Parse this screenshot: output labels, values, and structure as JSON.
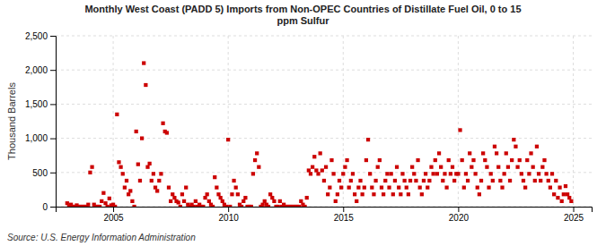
{
  "chart_data": {
    "type": "scatter",
    "title": "Monthly West Coast (PADD 5) Imports from Non-OPEC Countries of Distillate Fuel Oil, 0 to 15\nppm Sulfur",
    "y_label": "Thousand Barrels",
    "annotations": [
      "Source: U.S. Energy Information Administration"
    ],
    "color": "#cc0000",
    "marker": "square",
    "grid": true,
    "xlim": [
      2002.5,
      2025.8
    ],
    "xticks": [
      2005,
      2010,
      2015,
      2020,
      2025
    ],
    "ylim": [
      0,
      2500
    ],
    "yticks": [
      0,
      500,
      {
        "value": 1000,
        "label": "1,000"
      },
      {
        "value": 1500,
        "label": "1,500"
      },
      {
        "value": 2000,
        "label": "2,000"
      },
      {
        "value": 2500,
        "label": "2,500"
      }
    ],
    "x": [
      2003.0,
      2003.083,
      2003.167,
      2003.25,
      2003.333,
      2003.417,
      2003.5,
      2003.583,
      2003.667,
      2003.75,
      2003.833,
      2003.917,
      2004.0,
      2004.083,
      2004.167,
      2004.25,
      2004.333,
      2004.417,
      2004.5,
      2004.583,
      2004.667,
      2004.75,
      2004.833,
      2004.917,
      2005.0,
      2005.083,
      2005.167,
      2005.25,
      2005.333,
      2005.417,
      2005.5,
      2005.583,
      2005.667,
      2005.75,
      2005.833,
      2005.917,
      2006.0,
      2006.083,
      2006.167,
      2006.25,
      2006.333,
      2006.417,
      2006.5,
      2006.583,
      2006.667,
      2006.75,
      2006.833,
      2006.917,
      2007.0,
      2007.083,
      2007.167,
      2007.25,
      2007.333,
      2007.417,
      2007.5,
      2007.583,
      2007.667,
      2007.75,
      2007.833,
      2007.917,
      2008.0,
      2008.083,
      2008.167,
      2008.25,
      2008.333,
      2008.417,
      2008.5,
      2008.583,
      2008.667,
      2008.75,
      2008.833,
      2008.917,
      2009.0,
      2009.083,
      2009.167,
      2009.25,
      2009.333,
      2009.417,
      2009.5,
      2009.583,
      2009.667,
      2009.75,
      2009.833,
      2009.917,
      2010.0,
      2010.083,
      2010.167,
      2010.25,
      2010.333,
      2010.417,
      2010.5,
      2010.583,
      2010.667,
      2010.75,
      2010.833,
      2010.917,
      2011.0,
      2011.083,
      2011.167,
      2011.25,
      2011.333,
      2011.417,
      2011.5,
      2011.583,
      2011.667,
      2011.75,
      2011.833,
      2011.917,
      2012.0,
      2012.083,
      2012.167,
      2012.25,
      2012.333,
      2012.417,
      2012.5,
      2012.583,
      2012.667,
      2012.75,
      2012.833,
      2012.917,
      2013.0,
      2013.083,
      2013.167,
      2013.25,
      2013.333,
      2013.417,
      2013.5,
      2013.583,
      2013.667,
      2013.75,
      2013.833,
      2013.917,
      2014.0,
      2014.083,
      2014.167,
      2014.25,
      2014.333,
      2014.417,
      2014.5,
      2014.583,
      2014.667,
      2014.75,
      2014.833,
      2014.917,
      2015.0,
      2015.083,
      2015.167,
      2015.25,
      2015.333,
      2015.417,
      2015.5,
      2015.583,
      2015.667,
      2015.75,
      2015.833,
      2015.917,
      2016.0,
      2016.083,
      2016.167,
      2016.25,
      2016.333,
      2016.417,
      2016.5,
      2016.583,
      2016.667,
      2016.75,
      2016.833,
      2016.917,
      2017.0,
      2017.083,
      2017.167,
      2017.25,
      2017.333,
      2017.417,
      2017.5,
      2017.583,
      2017.667,
      2017.75,
      2017.833,
      2017.917,
      2018.0,
      2018.083,
      2018.167,
      2018.25,
      2018.333,
      2018.417,
      2018.5,
      2018.583,
      2018.667,
      2018.75,
      2018.833,
      2018.917,
      2019.0,
      2019.083,
      2019.167,
      2019.25,
      2019.333,
      2019.417,
      2019.5,
      2019.583,
      2019.667,
      2019.75,
      2019.833,
      2019.917,
      2020.0,
      2020.083,
      2020.167,
      2020.25,
      2020.333,
      2020.417,
      2020.5,
      2020.583,
      2020.667,
      2020.75,
      2020.833,
      2020.917,
      2021.0,
      2021.083,
      2021.167,
      2021.25,
      2021.333,
      2021.417,
      2021.5,
      2021.583,
      2021.667,
      2021.75,
      2021.833,
      2021.917,
      2022.0,
      2022.083,
      2022.167,
      2022.25,
      2022.333,
      2022.417,
      2022.5,
      2022.583,
      2022.667,
      2022.75,
      2022.833,
      2022.917,
      2023.0,
      2023.083,
      2023.167,
      2023.25,
      2023.333,
      2023.417,
      2023.5,
      2023.583,
      2023.667,
      2023.75,
      2023.833,
      2023.917,
      2024.0,
      2024.083,
      2024.167,
      2024.25,
      2024.333,
      2024.417,
      2024.5,
      2024.583,
      2024.667,
      2024.75,
      2024.833,
      2024.917
    ],
    "values": [
      50,
      0,
      30,
      0,
      0,
      20,
      0,
      0,
      0,
      0,
      0,
      30,
      500,
      580,
      30,
      0,
      0,
      0,
      80,
      200,
      50,
      0,
      120,
      20,
      30,
      0,
      1350,
      650,
      580,
      480,
      280,
      380,
      180,
      230,
      80,
      0,
      1100,
      620,
      380,
      1000,
      2100,
      1780,
      580,
      630,
      380,
      480,
      280,
      230,
      380,
      480,
      1220,
      1100,
      1080,
      280,
      80,
      180,
      130,
      80,
      60,
      0,
      180,
      80,
      280,
      30,
      0,
      30,
      0,
      80,
      0,
      30,
      0,
      0,
      130,
      180,
      80,
      30,
      0,
      430,
      280,
      180,
      130,
      80,
      30,
      0,
      980,
      0,
      180,
      380,
      280,
      180,
      30,
      0,
      80,
      130,
      0,
      0,
      0,
      480,
      680,
      780,
      580,
      0,
      30,
      80,
      30,
      0,
      180,
      130,
      80,
      0,
      0,
      80,
      0,
      30,
      0,
      0,
      0,
      0,
      0,
      0,
      0,
      0,
      80,
      30,
      0,
      130,
      530,
      480,
      580,
      730,
      530,
      480,
      780,
      530,
      380,
      580,
      180,
      280,
      680,
      480,
      80,
      180,
      380,
      280,
      480,
      580,
      680,
      280,
      380,
      480,
      180,
      80,
      280,
      380,
      180,
      280,
      680,
      980,
      480,
      280,
      180,
      380,
      580,
      680,
      280,
      180,
      380,
      480,
      280,
      480,
      180,
      380,
      580,
      280,
      180,
      480,
      380,
      280,
      180,
      380,
      580,
      480,
      380,
      680,
      280,
      180,
      380,
      480,
      280,
      380,
      580,
      480,
      680,
      480,
      780,
      580,
      380,
      480,
      280,
      680,
      480,
      580,
      380,
      480,
      480,
      1120,
      680,
      280,
      480,
      380,
      780,
      580,
      680,
      480,
      280,
      180,
      380,
      780,
      680,
      580,
      280,
      480,
      380,
      880,
      780,
      580,
      380,
      280,
      480,
      780,
      580,
      380,
      680,
      980,
      880,
      580,
      680,
      480,
      380,
      280,
      680,
      480,
      780,
      580,
      380,
      880,
      480,
      380,
      580,
      680,
      480,
      380,
      280,
      480,
      180,
      380,
      130,
      280,
      80,
      180,
      300,
      180,
      130,
      80
    ]
  }
}
